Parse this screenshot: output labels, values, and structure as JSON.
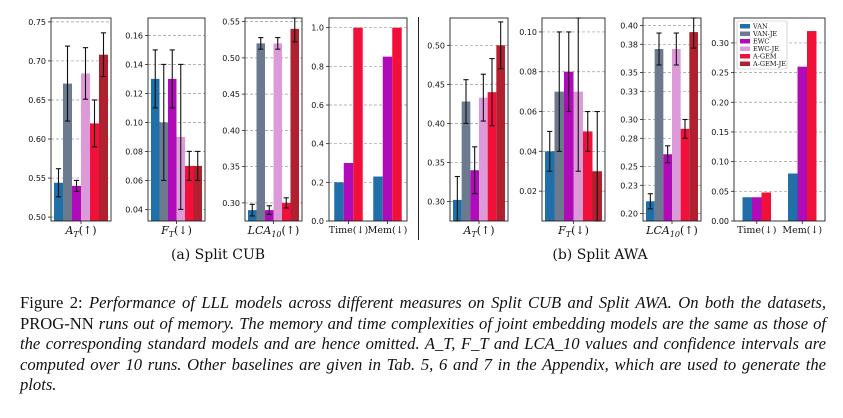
{
  "colors": {
    "VAN": "#1f6fa8",
    "VAN-JE": "#6b7a8f",
    "EWC": "#b00bb8",
    "EWC-JE": "#dd9ad8",
    "A-GEM": "#f0103a",
    "A-GEM-JE": "#b0202e"
  },
  "chart_data": [
    {
      "type": "bar",
      "group": "Split CUB",
      "xlabel": "A_T(↑)",
      "ylim": [
        0.495,
        0.755
      ],
      "yticks": [
        "0.50",
        "0.55",
        "0.60",
        "0.65",
        "0.70",
        "0.75"
      ],
      "series": [
        {
          "name": "VAN",
          "value": 0.544,
          "err": 0.018
        },
        {
          "name": "VAN-JE",
          "value": 0.671,
          "err": 0.048
        },
        {
          "name": "EWC",
          "value": 0.54,
          "err": 0.007
        },
        {
          "name": "EWC-JE",
          "value": 0.684,
          "err": 0.033
        },
        {
          "name": "A-GEM",
          "value": 0.62,
          "err": 0.03
        },
        {
          "name": "A-GEM-JE",
          "value": 0.708,
          "err": 0.028
        }
      ]
    },
    {
      "type": "bar",
      "group": "Split CUB",
      "xlabel": "F_T(↓)",
      "ylim": [
        0.032,
        0.172
      ],
      "yticks": [
        "0.04",
        "0.06",
        "0.08",
        "0.10",
        "0.12",
        "0.14",
        "0.16"
      ],
      "series": [
        {
          "name": "VAN",
          "value": 0.13,
          "err": 0.02
        },
        {
          "name": "VAN-JE",
          "value": 0.1,
          "err": 0.04
        },
        {
          "name": "EWC",
          "value": 0.13,
          "err": 0.02
        },
        {
          "name": "EWC-JE",
          "value": 0.09,
          "err": 0.05
        },
        {
          "name": "A-GEM",
          "value": 0.07,
          "err": 0.01
        },
        {
          "name": "A-GEM-JE",
          "value": 0.07,
          "err": 0.01
        }
      ]
    },
    {
      "type": "bar",
      "group": "Split CUB",
      "xlabel": "LCA_10(↑)",
      "ylim": [
        0.275,
        0.555
      ],
      "yticks": [
        "0.30",
        "0.35",
        "0.40",
        "0.45",
        "0.50",
        "0.55"
      ],
      "series": [
        {
          "name": "VAN",
          "value": 0.29,
          "err": 0.008
        },
        {
          "name": "VAN-JE",
          "value": 0.52,
          "err": 0.008
        },
        {
          "name": "EWC",
          "value": 0.29,
          "err": 0.006
        },
        {
          "name": "EWC-JE",
          "value": 0.52,
          "err": 0.008
        },
        {
          "name": "A-GEM",
          "value": 0.3,
          "err": 0.007
        },
        {
          "name": "A-GEM-JE",
          "value": 0.54,
          "err": 0.018
        }
      ]
    },
    {
      "type": "bar",
      "group": "Split CUB",
      "categories": [
        "Time(↓)",
        "Mem(↓)"
      ],
      "ylim": [
        0,
        1.05
      ],
      "yticks": [
        "0.0",
        "0.2",
        "0.4",
        "0.6",
        "0.8",
        "1.0"
      ],
      "series": [
        {
          "name": "VAN",
          "values": [
            0.2,
            0.23
          ]
        },
        {
          "name": "EWC",
          "values": [
            0.3,
            0.85
          ]
        },
        {
          "name": "A-GEM",
          "values": [
            1.0,
            1.0
          ]
        }
      ]
    },
    {
      "type": "bar",
      "group": "Split AWA",
      "xlabel": "A_T(↑)",
      "ylim": [
        0.275,
        0.535
      ],
      "yticks": [
        "0.30",
        "0.35",
        "0.40",
        "0.45",
        "0.50"
      ],
      "series": [
        {
          "name": "VAN",
          "value": 0.302,
          "err": 0.03
        },
        {
          "name": "VAN-JE",
          "value": 0.428,
          "err": 0.028
        },
        {
          "name": "EWC",
          "value": 0.34,
          "err": 0.03
        },
        {
          "name": "EWC-JE",
          "value": 0.433,
          "err": 0.03
        },
        {
          "name": "A-GEM",
          "value": 0.44,
          "err": 0.043
        },
        {
          "name": "A-GEM-JE",
          "value": 0.5,
          "err": 0.03
        }
      ]
    },
    {
      "type": "bar",
      "group": "Split AWA",
      "xlabel": "F_T(↓)",
      "ylim": [
        0.005,
        0.107
      ],
      "yticks": [
        "0.02",
        "0.04",
        "0.06",
        "0.08",
        "0.10"
      ],
      "series": [
        {
          "name": "VAN",
          "value": 0.04,
          "err": 0.01
        },
        {
          "name": "VAN-JE",
          "value": 0.07,
          "err": 0.03
        },
        {
          "name": "EWC",
          "value": 0.08,
          "err": 0.02
        },
        {
          "name": "EWC-JE",
          "value": 0.07,
          "err": 0.04
        },
        {
          "name": "A-GEM",
          "value": 0.05,
          "err": 0.01
        },
        {
          "name": "A-GEM-JE",
          "value": 0.03,
          "err": 0.03
        }
      ]
    },
    {
      "type": "bar",
      "group": "Split AWA",
      "xlabel": "LCA_10(↑)",
      "ylim": [
        0.192,
        0.408
      ],
      "yticks": [
        "0.20",
        "0.23",
        "0.25",
        "0.28",
        "0.30",
        "0.33",
        "0.35",
        "0.38",
        "0.40"
      ],
      "series": [
        {
          "name": "VAN",
          "value": 0.213,
          "err": 0.008
        },
        {
          "name": "VAN-JE",
          "value": 0.375,
          "err": 0.017
        },
        {
          "name": "EWC",
          "value": 0.263,
          "err": 0.009
        },
        {
          "name": "EWC-JE",
          "value": 0.375,
          "err": 0.017
        },
        {
          "name": "A-GEM",
          "value": 0.29,
          "err": 0.01
        },
        {
          "name": "A-GEM-JE",
          "value": 0.393,
          "err": 0.017
        }
      ]
    },
    {
      "type": "bar",
      "group": "Split AWA",
      "categories": [
        "Time(↓)",
        "Mem(↓)"
      ],
      "ylim": [
        0,
        0.342
      ],
      "yticks": [
        "0.00",
        "0.05",
        "0.10",
        "0.15",
        "0.20",
        "0.25",
        "0.30"
      ],
      "series": [
        {
          "name": "VAN",
          "values": [
            0.04,
            0.08
          ]
        },
        {
          "name": "EWC",
          "values": [
            0.04,
            0.26
          ]
        },
        {
          "name": "A-GEM",
          "values": [
            0.048,
            0.32
          ]
        }
      ],
      "legend": {
        "position": "top-left",
        "entries": [
          "VAN",
          "VAN-JE",
          "EWC",
          "EWC-JE",
          "A-GEM",
          "A-GEM-JE"
        ]
      }
    }
  ],
  "subcaptions": {
    "left": "(a) Split CUB",
    "right": "(b) Split AWA"
  },
  "caption": {
    "prefix": "Figure 2: ",
    "s1": "Performance of LLL models across different measures on Split CUB and Split AWA. On both the datasets, ",
    "progname": "PROG-NN",
    "s2": " runs out of memory. The memory and time complexities of joint embedding models are the same as those of the corresponding standard models and are hence omitted. ",
    "s3": "A_T, F_T and LCA_10 values and confidence intervals are computed over 10 runs. Other baselines are given in Tab. 5, 6 and 7 in the Appendix, which are used to generate the plots."
  }
}
